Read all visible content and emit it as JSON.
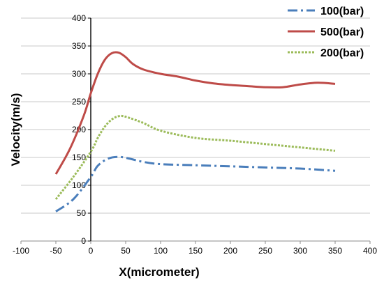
{
  "chart_data": {
    "type": "line",
    "title": "",
    "xlabel": "X(micrometer)",
    "ylabel": "Velocity(m/s)",
    "xlim": [
      -100,
      400
    ],
    "ylim": [
      0,
      400
    ],
    "xticks": [
      -100,
      -50,
      0,
      50,
      100,
      150,
      200,
      250,
      300,
      350,
      400
    ],
    "yticks": [
      0,
      50,
      100,
      150,
      200,
      250,
      300,
      350,
      400
    ],
    "grid": "horizontal",
    "legend_position": "top-right",
    "series": [
      {
        "name": "100(bar)",
        "color": "#4a7ebb",
        "style": "dash-dot",
        "x": [
          -50,
          -25,
          0,
          10,
          25,
          40,
          55,
          75,
          100,
          150,
          200,
          250,
          300,
          350
        ],
        "y": [
          53,
          75,
          115,
          135,
          148,
          151,
          148,
          142,
          138,
          136,
          134,
          132,
          130,
          126
        ]
      },
      {
        "name": "500(bar)",
        "color": "#be4b48",
        "style": "solid",
        "x": [
          -50,
          -30,
          -10,
          0,
          10,
          20,
          30,
          40,
          50,
          60,
          75,
          100,
          125,
          150,
          175,
          200,
          225,
          250,
          275,
          300,
          325,
          350
        ],
        "y": [
          120,
          165,
          225,
          265,
          300,
          325,
          337,
          338,
          330,
          318,
          308,
          300,
          295,
          288,
          283,
          280,
          278,
          276,
          276,
          281,
          284,
          282
        ]
      },
      {
        "name": "200(bar)",
        "color": "#9bbb59",
        "style": "dotted",
        "x": [
          -50,
          -25,
          0,
          10,
          20,
          30,
          40,
          50,
          75,
          100,
          150,
          200,
          250,
          300,
          350
        ],
        "y": [
          75,
          115,
          160,
          185,
          205,
          218,
          224,
          223,
          212,
          198,
          185,
          180,
          174,
          168,
          162
        ]
      }
    ]
  }
}
